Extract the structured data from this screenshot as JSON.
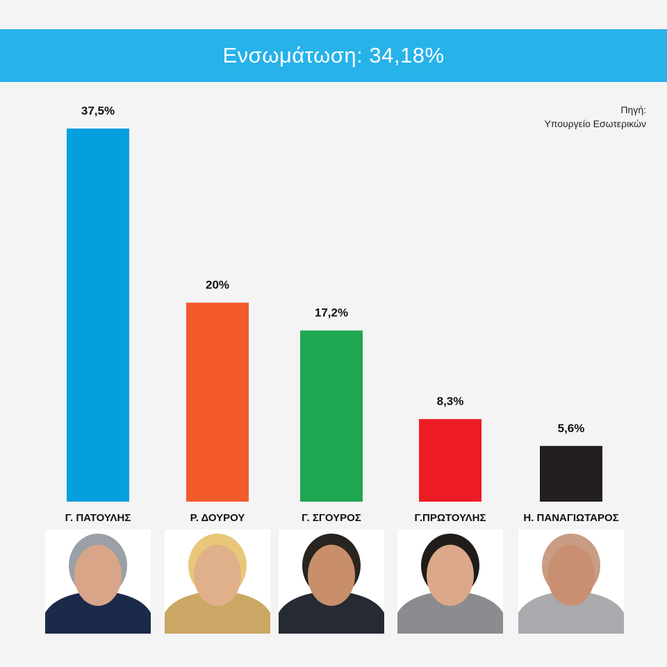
{
  "header": {
    "title": "Ενσωμάτωση: 34,18%"
  },
  "source": {
    "line1": "Πηγή:",
    "line2": "Υπουργείο Εσωτερικών"
  },
  "chart_data": {
    "type": "bar",
    "categories": [
      "Γ. ΠΑΤΟΥΛΗΣ",
      "Ρ. ΔΟΥΡΟΥ",
      "Γ. ΣΓΟΥΡΟΣ",
      "Γ.ΠΡΩΤΟΥΛΗΣ",
      "Η. ΠΑΝΑΓΙΩΤΑΡΟΣ"
    ],
    "values": [
      37.5,
      20,
      17.2,
      8.3,
      5.6
    ],
    "value_labels": [
      "37,5%",
      "20%",
      "17,2%",
      "8,3%",
      "5,6%"
    ],
    "colors": [
      "#059fe0",
      "#f25a2c",
      "#1ea650",
      "#ed1c24",
      "#231f20"
    ],
    "ylim": [
      0,
      37.5
    ],
    "grid": false,
    "legend": "none"
  },
  "portraits": {
    "icon": "person-photo-icon",
    "jacket_colors": [
      "#1c2a4a",
      "#caa765",
      "#262a33",
      "#8a8c90",
      "#a9aaad"
    ],
    "skin_colors": [
      "#d8a588",
      "#e0b08a",
      "#c98f6b",
      "#dba889",
      "#c98f72"
    ],
    "hair_colors": [
      "#9aa0a6",
      "#e8c77b",
      "#2a2420",
      "#1f1c1a",
      "#c99c84"
    ]
  }
}
